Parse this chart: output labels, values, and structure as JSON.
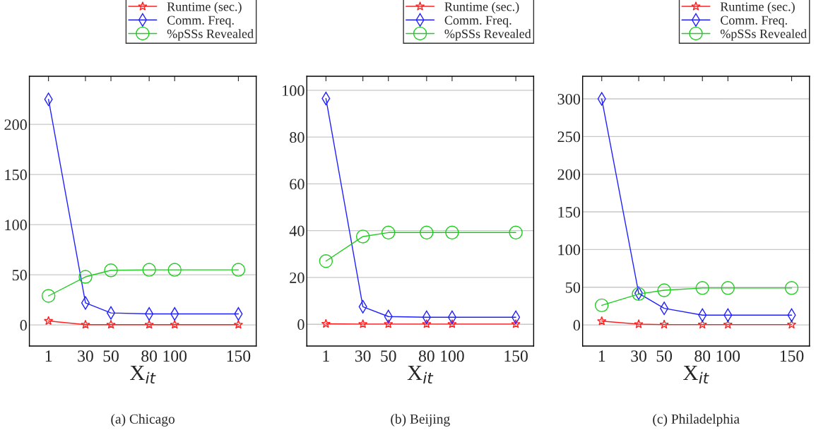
{
  "chart_data": [
    {
      "type": "line",
      "title": "(a) Chicago",
      "xlabel": "X$_{it}$",
      "x": [
        1,
        30,
        50,
        80,
        100,
        150
      ],
      "xlim": [
        -14,
        164
      ],
      "xticks": [
        1,
        30,
        50,
        80,
        100,
        150
      ],
      "ylim": [
        -21,
        248
      ],
      "yticks": [
        0,
        50,
        100,
        150,
        200
      ],
      "grid": "y",
      "legend": "top right",
      "series": [
        {
          "name": "Runtime (sec.)",
          "color": "#ff2020",
          "marker": "star",
          "values": [
            4,
            0.3,
            0.3,
            0.3,
            0.3,
            0.3
          ]
        },
        {
          "name": "Comm. Freq.",
          "color": "#2020ff",
          "marker": "diamond",
          "values": [
            225,
            22,
            12,
            11,
            11,
            11
          ]
        },
        {
          "name": "%pSSs Revealed",
          "color": "#20cc20",
          "marker": "circle",
          "values": [
            29,
            48,
            54.5,
            55,
            55,
            55
          ]
        }
      ]
    },
    {
      "type": "line",
      "title": "(b) Beijing",
      "xlabel": "X$_{it}$",
      "x": [
        1,
        30,
        50,
        80,
        100,
        150
      ],
      "xlim": [
        -14,
        164
      ],
      "xticks": [
        1,
        30,
        50,
        80,
        100,
        150
      ],
      "ylim": [
        -9.3,
        106
      ],
      "yticks": [
        0,
        20,
        40,
        60,
        80,
        100
      ],
      "grid": "y",
      "legend": "top right",
      "series": [
        {
          "name": "Runtime (sec.)",
          "color": "#ff2020",
          "marker": "star",
          "values": [
            0.2,
            0.1,
            0.1,
            0.1,
            0.1,
            0.1
          ]
        },
        {
          "name": "Comm. Freq.",
          "color": "#2020ff",
          "marker": "diamond",
          "values": [
            96.5,
            7.5,
            3.3,
            3,
            3,
            3
          ]
        },
        {
          "name": "%pSSs Revealed",
          "color": "#20cc20",
          "marker": "circle",
          "values": [
            27,
            37.5,
            39.2,
            39.2,
            39.2,
            39.2
          ]
        }
      ]
    },
    {
      "type": "line",
      "title": "(c) Philadelphia",
      "xlabel": "X$_{it}$",
      "x": [
        1,
        30,
        50,
        80,
        100,
        150
      ],
      "xlim": [
        -14,
        164
      ],
      "xticks": [
        1,
        30,
        50,
        80,
        100,
        150
      ],
      "ylim": [
        -28,
        330
      ],
      "yticks": [
        0,
        50,
        100,
        150,
        200,
        250,
        300
      ],
      "grid": "y",
      "legend": "top right",
      "series": [
        {
          "name": "Runtime (sec.)",
          "color": "#ff2020",
          "marker": "star",
          "values": [
            5,
            1,
            0.5,
            0.5,
            0.5,
            0.5
          ]
        },
        {
          "name": "Comm. Freq.",
          "color": "#2020ff",
          "marker": "diamond",
          "values": [
            300,
            42,
            22,
            13,
            13,
            13
          ]
        },
        {
          "name": "%pSSs Revealed",
          "color": "#20cc20",
          "marker": "circle",
          "values": [
            26,
            41,
            46,
            49,
            49,
            49
          ]
        }
      ]
    }
  ]
}
